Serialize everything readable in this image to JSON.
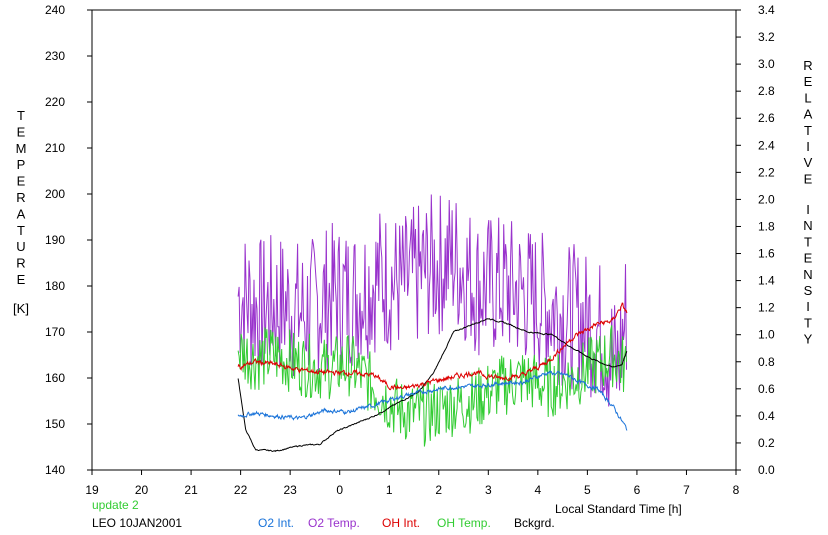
{
  "chart_data": {
    "type": "line",
    "x_axis": {
      "label": "Local Standard Time [h]",
      "ticks": [
        "19",
        "20",
        "21",
        "22",
        "23",
        "0",
        "1",
        "2",
        "3",
        "4",
        "5",
        "6",
        "7",
        "8"
      ],
      "range": [
        19,
        32
      ]
    },
    "y_left": {
      "label_letters": [
        "T",
        "E",
        "M",
        "P",
        "E",
        "R",
        "A",
        "T",
        "U",
        "R",
        "E"
      ],
      "unit": "[K]",
      "ticks": [
        "140",
        "150",
        "160",
        "170",
        "180",
        "190",
        "200",
        "210",
        "220",
        "230",
        "240"
      ],
      "range": [
        140,
        240
      ]
    },
    "y_right": {
      "label_letters_1": [
        "R",
        "E",
        "L",
        "A",
        "T",
        "I",
        "V",
        "E"
      ],
      "label_letters_2": [
        "I",
        "N",
        "T",
        "E",
        "N",
        "S",
        "I",
        "T",
        "Y"
      ],
      "ticks": [
        "0.0",
        "0.2",
        "0.4",
        "0.6",
        "0.8",
        "1.0",
        "1.2",
        "1.4",
        "1.6",
        "1.8",
        "2.0",
        "2.2",
        "2.4",
        "2.6",
        "2.8",
        "3.0",
        "3.2",
        "3.4"
      ],
      "range": [
        0,
        3.4
      ]
    },
    "footer": {
      "update": "update 2",
      "station": "LEO 10JAN2001"
    },
    "legend_placement": "bottom",
    "series": [
      {
        "name": "O2 Int.",
        "color": "#1a73d9",
        "axis": "right",
        "x": [
          21.95,
          22.3,
          22.7,
          23.2,
          23.7,
          24.2,
          24.7,
          25.2,
          25.7,
          26.2,
          26.7,
          27.2,
          27.7,
          28.2,
          28.6,
          28.9,
          29.2,
          29.5,
          29.8
        ],
        "y": [
          0.4,
          0.42,
          0.4,
          0.38,
          0.44,
          0.43,
          0.48,
          0.54,
          0.58,
          0.61,
          0.62,
          0.64,
          0.65,
          0.72,
          0.7,
          0.64,
          0.6,
          0.48,
          0.3
        ]
      },
      {
        "name": "O2 Temp.",
        "color": "#9933cc",
        "axis": "left",
        "x": [
          21.95,
          22.4,
          22.8,
          23.3,
          23.8,
          24.3,
          24.8,
          25.3,
          25.8,
          26.3,
          26.8,
          27.3,
          27.8,
          28.3,
          28.8,
          29.3,
          29.6,
          29.8
        ],
        "y": [
          178,
          175,
          176,
          174,
          178,
          178,
          182,
          180,
          184,
          186,
          180,
          180,
          178,
          175,
          173,
          170,
          162,
          175
        ]
      },
      {
        "name": "OH Int.",
        "color": "#dd0000",
        "axis": "right",
        "x": [
          21.95,
          22.3,
          22.7,
          23.2,
          23.7,
          24.2,
          24.7,
          25.0,
          25.3,
          25.7,
          26.2,
          26.7,
          27.2,
          27.7,
          28.2,
          28.7,
          29.2,
          29.5,
          29.7,
          29.8
        ],
        "y": [
          0.76,
          0.8,
          0.78,
          0.74,
          0.72,
          0.72,
          0.7,
          0.62,
          0.6,
          0.64,
          0.68,
          0.72,
          0.68,
          0.7,
          0.8,
          0.98,
          1.08,
          1.1,
          1.22,
          1.16
        ]
      },
      {
        "name": "OH Temp.",
        "color": "#33cc33",
        "axis": "left",
        "x": [
          21.95,
          22.3,
          22.7,
          23.2,
          23.7,
          24.2,
          24.7,
          25.2,
          25.7,
          26.2,
          26.7,
          27.2,
          27.7,
          28.2,
          28.7,
          29.2,
          29.5,
          29.8
        ],
        "y": [
          166,
          164,
          165,
          163,
          162,
          163,
          158,
          153,
          152,
          154,
          155,
          158,
          160,
          158,
          160,
          163,
          165,
          162
        ]
      },
      {
        "name": "Bckgrd.",
        "color": "#000000",
        "axis": "right",
        "x": [
          21.95,
          22.1,
          22.3,
          22.7,
          23.2,
          23.6,
          23.9,
          24.3,
          24.7,
          25.2,
          25.6,
          25.9,
          26.3,
          26.7,
          27.0,
          27.4,
          27.8,
          28.3,
          28.7,
          29.1,
          29.5,
          29.7,
          29.8
        ],
        "y": [
          0.68,
          0.3,
          0.15,
          0.14,
          0.18,
          0.19,
          0.28,
          0.34,
          0.4,
          0.5,
          0.58,
          0.72,
          1.02,
          1.08,
          1.12,
          1.08,
          1.02,
          1.0,
          0.9,
          0.82,
          0.76,
          0.78,
          0.88
        ]
      }
    ]
  }
}
